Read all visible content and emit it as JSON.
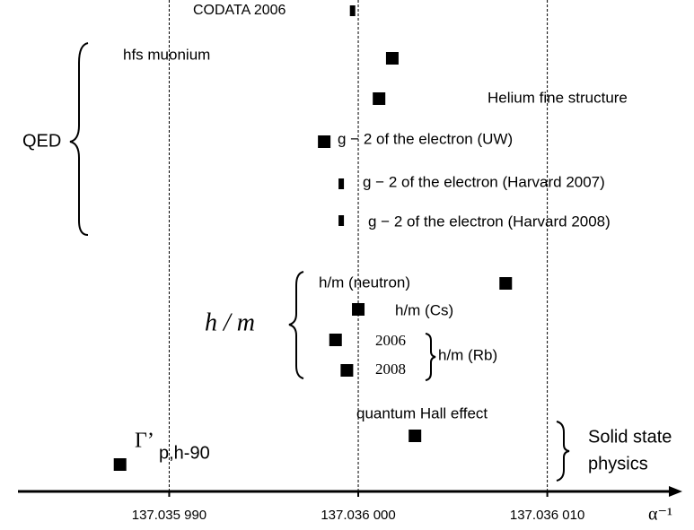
{
  "chart_data": {
    "type": "errorbar",
    "x_label": "α⁻¹",
    "xlim": [
      137.035982,
      137.036017
    ],
    "xticks": [
      {
        "value": 137.03599,
        "label": "137.035 990"
      },
      {
        "value": 137.036,
        "label": "137.036 000"
      },
      {
        "value": 137.03601,
        "label": "137.036 010"
      }
    ],
    "grid": true,
    "series": [
      {
        "name": "CODATA 2006",
        "value": 137.0359997,
        "error": 1e-10
      },
      {
        "name": "hfs muonium",
        "value": 137.0360018,
        "error": 7.9e-09
      },
      {
        "name": "Helium fine structure",
        "value": 137.0360011,
        "error": 3.9e-09
      },
      {
        "name": "g − 2 of the electron (UW)",
        "value": 137.0359982,
        "error": 4e-10
      },
      {
        "name": "g − 2 of the electron (Harvard 2007)",
        "value": 137.0359991,
        "error": 1e-10
      },
      {
        "name": "g − 2 of the electron (Harvard 2008)",
        "value": 137.0359991,
        "error": 1e-10
      },
      {
        "name": "h/m (neutron)",
        "value": 137.0360078,
        "error": 2.8e-09
      },
      {
        "name": "h/m (Cs)",
        "value": 137.036,
        "error": 1.1e-09
      },
      {
        "name": "2006",
        "value": 137.0359988,
        "error": 9e-10
      },
      {
        "name": "2008",
        "value": 137.0359994,
        "error": 6e-10
      },
      {
        "name": "quantum Hall effect",
        "value": 137.036003,
        "error": 2.7e-09
      },
      {
        "name": "",
        "value": 137.0359874,
        "error": 4.3e-09
      }
    ],
    "groups": {
      "qed": "QED",
      "hm": "h / m",
      "rb": "h/m (Rb)",
      "solid": [
        "Solid state",
        "physics"
      ],
      "gamma": {
        "symbol": "Γ’",
        "subscript": "p,h-90"
      }
    }
  }
}
